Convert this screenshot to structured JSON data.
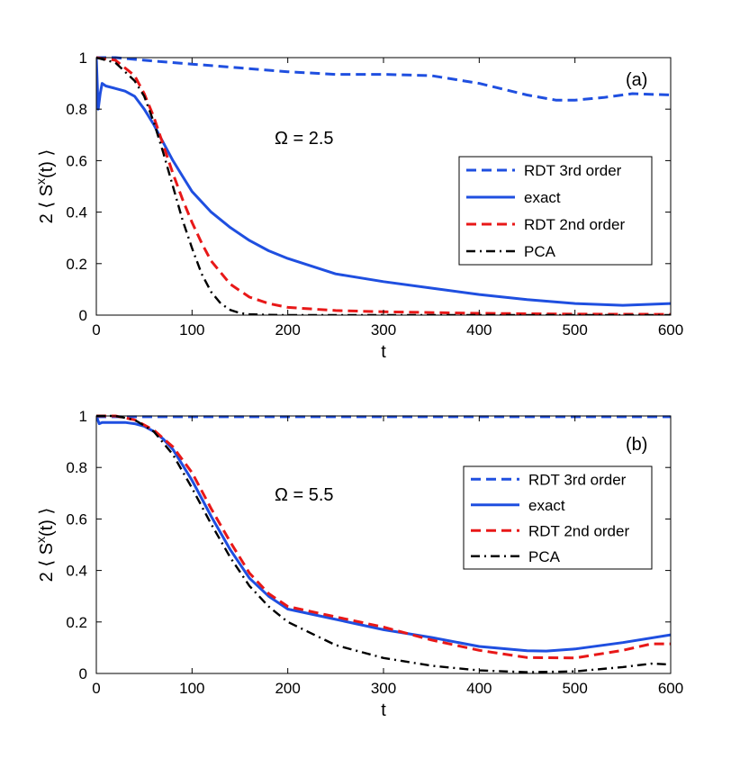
{
  "chart_data": [
    {
      "id": "a",
      "type": "line",
      "panel_label": "(a)",
      "annotation": "Ω = 2.5",
      "xlabel": "t",
      "ylabel_prefix": "2 ⟨ S",
      "ylabel_sup": "x",
      "ylabel_suffix": "(t) ⟩",
      "xlim": [
        0,
        600
      ],
      "ylim": [
        0,
        1
      ],
      "xticks": [
        0,
        100,
        200,
        300,
        400,
        500,
        600
      ],
      "yticks": [
        0,
        0.2,
        0.4,
        0.6,
        0.8,
        1
      ],
      "ytick_labels": [
        "0",
        "0.2",
        "0.4",
        "0.6",
        "0.8",
        "1"
      ],
      "legend_position": "center-right",
      "series": [
        {
          "name": "RDT 3rd order",
          "color": "#1f4fe0",
          "style": "dashed",
          "x": [
            0,
            20,
            50,
            100,
            150,
            200,
            250,
            300,
            350,
            400,
            450,
            480,
            500,
            530,
            560,
            600
          ],
          "y": [
            1,
            1,
            0.99,
            0.975,
            0.96,
            0.945,
            0.935,
            0.935,
            0.93,
            0.9,
            0.855,
            0.835,
            0.835,
            0.845,
            0.86,
            0.855
          ]
        },
        {
          "name": "exact",
          "color": "#1f4fe0",
          "style": "solid",
          "x": [
            0,
            2,
            4,
            6,
            10,
            20,
            30,
            40,
            50,
            60,
            70,
            80,
            90,
            100,
            120,
            140,
            160,
            180,
            200,
            250,
            300,
            350,
            400,
            450,
            500,
            550,
            600
          ],
          "y": [
            1,
            0.8,
            0.86,
            0.9,
            0.89,
            0.88,
            0.87,
            0.85,
            0.8,
            0.74,
            0.67,
            0.6,
            0.54,
            0.48,
            0.4,
            0.34,
            0.29,
            0.25,
            0.22,
            0.16,
            0.13,
            0.105,
            0.08,
            0.06,
            0.045,
            0.038,
            0.045
          ]
        },
        {
          "name": "RDT 2nd order",
          "color": "#e81818",
          "style": "dashed",
          "x": [
            0,
            20,
            40,
            50,
            60,
            70,
            80,
            90,
            100,
            110,
            120,
            140,
            160,
            180,
            200,
            250,
            300,
            400,
            500,
            600
          ],
          "y": [
            1,
            0.99,
            0.93,
            0.86,
            0.77,
            0.66,
            0.55,
            0.45,
            0.36,
            0.28,
            0.21,
            0.12,
            0.07,
            0.045,
            0.03,
            0.018,
            0.013,
            0.007,
            0.004,
            0.003
          ]
        },
        {
          "name": "PCA",
          "color": "#000000",
          "style": "dashdot",
          "x": [
            0,
            20,
            40,
            50,
            60,
            70,
            80,
            90,
            100,
            110,
            120,
            130,
            140,
            150,
            160,
            180,
            200,
            300,
            400,
            500,
            600
          ],
          "y": [
            1,
            0.98,
            0.91,
            0.85,
            0.75,
            0.63,
            0.5,
            0.37,
            0.26,
            0.16,
            0.09,
            0.045,
            0.02,
            0.008,
            0.003,
            0.001,
            0,
            0,
            0,
            0,
            0
          ]
        }
      ]
    },
    {
      "id": "b",
      "type": "line",
      "panel_label": "(b)",
      "annotation": "Ω = 5.5",
      "xlabel": "t",
      "ylabel_prefix": "2 ⟨ S",
      "ylabel_sup": "x",
      "ylabel_suffix": "(t) ⟩",
      "xlim": [
        0,
        600
      ],
      "ylim": [
        0,
        1
      ],
      "xticks": [
        0,
        100,
        200,
        300,
        400,
        500,
        600
      ],
      "yticks": [
        0,
        0.2,
        0.4,
        0.6,
        0.8,
        1
      ],
      "ytick_labels": [
        "0",
        "0.2",
        "0.4",
        "0.6",
        "0.8",
        "1"
      ],
      "legend_position": "center-right",
      "series": [
        {
          "name": "RDT 3rd order",
          "color": "#1f4fe0",
          "style": "dashed",
          "x": [
            0,
            100,
            200,
            300,
            400,
            500,
            600
          ],
          "y": [
            0.997,
            0.997,
            0.997,
            0.997,
            0.997,
            0.997,
            0.997
          ]
        },
        {
          "name": "exact",
          "color": "#1f4fe0",
          "style": "solid",
          "x": [
            0,
            3,
            6,
            10,
            20,
            30,
            40,
            50,
            60,
            70,
            80,
            90,
            100,
            110,
            120,
            140,
            160,
            180,
            200,
            250,
            300,
            350,
            400,
            450,
            470,
            500,
            550,
            600
          ],
          "y": [
            1,
            0.97,
            0.975,
            0.975,
            0.975,
            0.975,
            0.97,
            0.96,
            0.94,
            0.91,
            0.87,
            0.81,
            0.75,
            0.68,
            0.61,
            0.48,
            0.37,
            0.3,
            0.25,
            0.21,
            0.17,
            0.14,
            0.105,
            0.088,
            0.087,
            0.095,
            0.12,
            0.15
          ]
        },
        {
          "name": "RDT 2nd order",
          "color": "#e81818",
          "style": "dashed",
          "x": [
            0,
            20,
            40,
            60,
            80,
            100,
            120,
            140,
            160,
            180,
            200,
            250,
            300,
            350,
            400,
            450,
            500,
            550,
            580,
            600
          ],
          "y": [
            1,
            1,
            0.985,
            0.945,
            0.88,
            0.78,
            0.64,
            0.51,
            0.39,
            0.31,
            0.26,
            0.22,
            0.18,
            0.13,
            0.09,
            0.062,
            0.06,
            0.09,
            0.115,
            0.115
          ]
        },
        {
          "name": "PCA",
          "color": "#000000",
          "style": "dashdot",
          "x": [
            0,
            20,
            40,
            60,
            80,
            100,
            120,
            140,
            160,
            180,
            200,
            250,
            300,
            350,
            400,
            450,
            500,
            550,
            580,
            600
          ],
          "y": [
            1,
            1,
            0.985,
            0.94,
            0.85,
            0.72,
            0.58,
            0.45,
            0.34,
            0.26,
            0.2,
            0.11,
            0.06,
            0.03,
            0.012,
            0.005,
            0.008,
            0.025,
            0.038,
            0.035
          ]
        }
      ]
    }
  ]
}
